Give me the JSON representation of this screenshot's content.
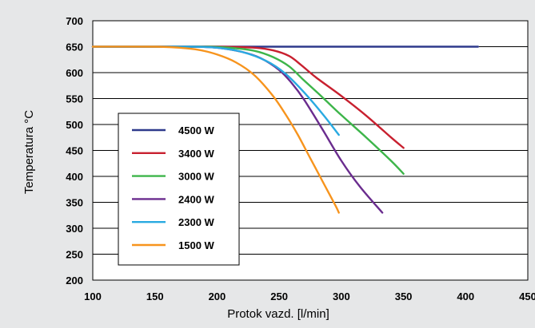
{
  "chart_data": {
    "type": "line",
    "xlabel": "Protok vazd. [l/min]",
    "ylabel": "Temperatura °C",
    "xlim": [
      100,
      450
    ],
    "ylim": [
      200,
      700
    ],
    "x_ticks": [
      100,
      150,
      200,
      250,
      300,
      350,
      400,
      450
    ],
    "y_ticks": [
      200,
      250,
      300,
      350,
      400,
      450,
      500,
      550,
      600,
      650,
      700
    ],
    "grid": "horizontal",
    "legend_position": "lower-left",
    "plot_background": "#ffffff",
    "page_background": "#e6e7e8",
    "series": [
      {
        "name": "4500 W",
        "color": "#2e3a8c",
        "x": [
          100,
          150,
          200,
          250,
          300,
          350,
          410
        ],
        "y": [
          650,
          650,
          650,
          650,
          650,
          650,
          650
        ]
      },
      {
        "name": "3400 W",
        "color": "#c8202f",
        "x": [
          100,
          150,
          200,
          230,
          245,
          258,
          268,
          280,
          300,
          320,
          340,
          350
        ],
        "y": [
          650,
          650,
          650,
          648,
          643,
          632,
          614,
          590,
          555,
          517,
          475,
          455
        ]
      },
      {
        "name": "3000 W",
        "color": "#3db54a",
        "x": [
          100,
          150,
          190,
          210,
          230,
          245,
          258,
          270,
          285,
          300,
          320,
          340,
          350
        ],
        "y": [
          650,
          650,
          650,
          648,
          642,
          630,
          612,
          585,
          552,
          518,
          475,
          430,
          405
        ]
      },
      {
        "name": "2400 W",
        "color": "#6a2c8e",
        "x": [
          100,
          150,
          180,
          200,
          220,
          235,
          250,
          260,
          270,
          285,
          300,
          315,
          333
        ],
        "y": [
          650,
          650,
          650,
          648,
          640,
          628,
          605,
          580,
          548,
          490,
          430,
          380,
          330
        ]
      },
      {
        "name": "2300 W",
        "color": "#29aae1",
        "x": [
          100,
          150,
          180,
          200,
          220,
          240,
          255,
          270,
          285,
          298
        ],
        "y": [
          650,
          650,
          650,
          648,
          640,
          622,
          598,
          562,
          520,
          480
        ]
      },
      {
        "name": "1500 W",
        "color": "#f7941d",
        "x": [
          100,
          150,
          170,
          185,
          200,
          215,
          230,
          245,
          255,
          265,
          275,
          285,
          295,
          298
        ],
        "y": [
          650,
          650,
          648,
          644,
          635,
          620,
          595,
          555,
          520,
          480,
          435,
          390,
          345,
          330
        ]
      }
    ]
  }
}
